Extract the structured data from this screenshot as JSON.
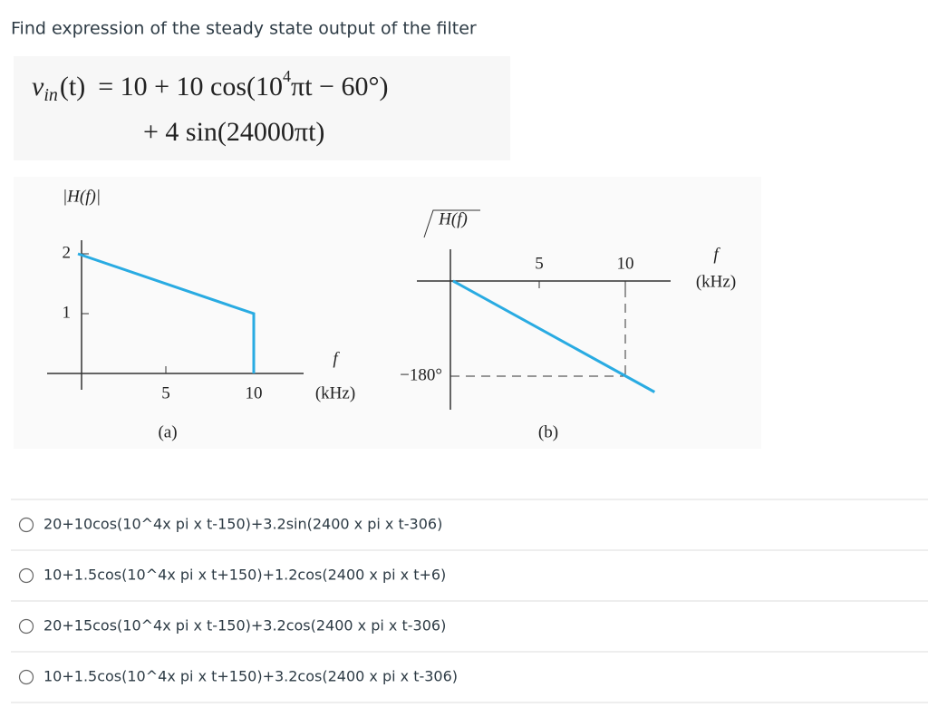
{
  "question": "Find expression of the steady state output of the filter",
  "equation": {
    "line1": {
      "v": "v",
      "sub": "in",
      "arg": "(t)",
      "rhs": "= 10 + 10 cos(10",
      "sup": "4",
      "rest": "πt − 60°)"
    },
    "line2": "+ 4 sin(24000πt)"
  },
  "figure_a": {
    "y_label": "|H(f)|",
    "yticks": [
      1,
      2
    ],
    "xticks": [
      5,
      10
    ],
    "x_label": "f",
    "x_unit": "(kHz)",
    "caption": "(a)",
    "x": [
      0,
      10,
      10
    ],
    "y": [
      2,
      1,
      0
    ]
  },
  "figure_b": {
    "y_label": "H(f)",
    "yticks": [
      {
        "value": -180,
        "label": "−180°"
      }
    ],
    "xticks": [
      5,
      10
    ],
    "x_label": "f",
    "x_unit": "(kHz)",
    "caption": "(b)",
    "x": [
      0,
      11.7
    ],
    "y": [
      0,
      -210
    ]
  },
  "options": [
    "20+10cos(10^4x pi x t-150)+3.2sin(2400 x pi x t-306)",
    "10+1.5cos(10^4x pi x t+150)+1.2cos(2400 x pi x t+6)",
    "20+15cos(10^4x pi x t-150)+3.2cos(2400 x pi x t-306)",
    "10+1.5cos(10^4x pi x t+150)+3.2cos(2400 x pi x t-306)"
  ]
}
